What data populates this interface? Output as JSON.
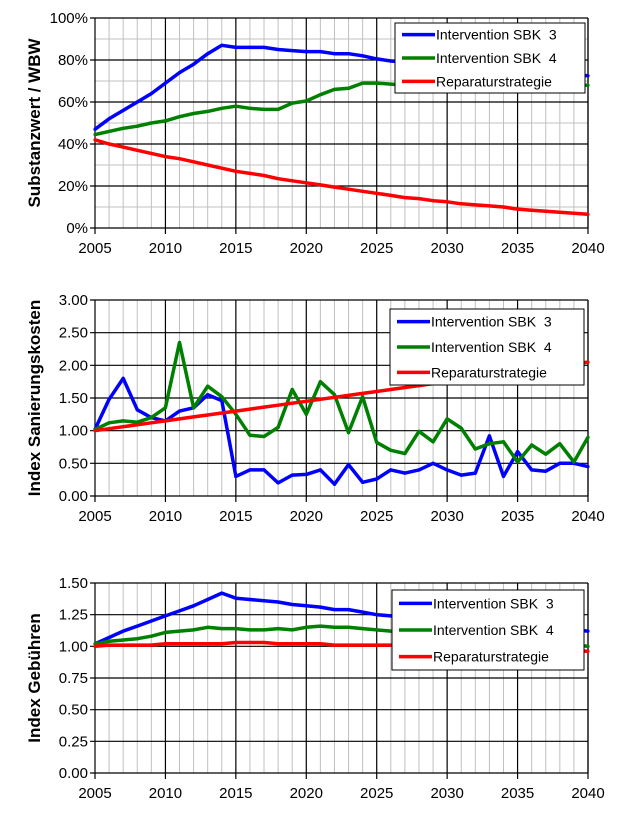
{
  "chart_data": [
    {
      "type": "line",
      "title": "",
      "xlabel": "",
      "ylabel": "Substanzwert / WBW",
      "xlim": [
        2005,
        2040
      ],
      "ylim": [
        0,
        100
      ],
      "yformat": "percent",
      "xticks": [
        "2005",
        "2010",
        "2015",
        "2020",
        "2025",
        "2030",
        "2035",
        "2040"
      ],
      "yticks": [
        "0%",
        "20%",
        "40%",
        "60%",
        "80%",
        "100%"
      ],
      "grid": true,
      "legend": "top-right",
      "x": [
        2005,
        2006,
        2007,
        2008,
        2009,
        2010,
        2011,
        2012,
        2013,
        2014,
        2015,
        2016,
        2017,
        2018,
        2019,
        2020,
        2021,
        2022,
        2023,
        2024,
        2025,
        2026,
        2027,
        2028,
        2029,
        2030,
        2031,
        2032,
        2033,
        2034,
        2035,
        2036,
        2037,
        2038,
        2039,
        2040
      ],
      "series": [
        {
          "name": "Intervention SBK  3",
          "color": "#0000ff",
          "values": [
            47,
            52,
            56,
            60,
            64,
            69,
            74,
            78,
            83,
            87,
            86,
            86,
            86,
            85,
            84.5,
            84,
            84,
            83,
            83,
            82,
            80.5,
            79.5,
            79,
            78.5,
            78,
            77.5,
            77,
            76.5,
            76,
            75.5,
            75,
            74.5,
            74,
            73.5,
            73,
            72.5
          ]
        },
        {
          "name": "Intervention SBK  4",
          "color": "#008000",
          "values": [
            44.5,
            46,
            47.5,
            48.5,
            50,
            51,
            53,
            54.5,
            55.5,
            57,
            58,
            57,
            56.5,
            56.5,
            59.5,
            60.5,
            63.5,
            66,
            66.5,
            69,
            69,
            68.5,
            68,
            68,
            68,
            68,
            68,
            68,
            68,
            68,
            68,
            68,
            68,
            68,
            68,
            68
          ]
        },
        {
          "name": "Reparaturstrategie",
          "color": "#ff0000",
          "values": [
            42,
            40,
            38.5,
            37,
            35.5,
            34,
            33,
            31.5,
            30,
            28.5,
            27,
            26,
            25,
            23.5,
            22.5,
            21.5,
            20.5,
            19.5,
            18.5,
            17.5,
            16.5,
            15.5,
            14.5,
            14,
            13,
            12.5,
            11.5,
            11,
            10.5,
            10,
            9,
            8.5,
            8,
            7.5,
            7,
            6.5
          ]
        }
      ]
    },
    {
      "type": "line",
      "title": "",
      "xlabel": "",
      "ylabel": "Index Sanierungskosten",
      "xlim": [
        2005,
        2040
      ],
      "ylim": [
        0,
        3
      ],
      "xticks": [
        "2005",
        "2010",
        "2015",
        "2020",
        "2025",
        "2030",
        "2035",
        "2040"
      ],
      "yticks": [
        "0.00",
        "0.50",
        "1.00",
        "1.50",
        "2.00",
        "2.50",
        "3.00"
      ],
      "grid": true,
      "legend": "top-right",
      "x": [
        2005,
        2006,
        2007,
        2008,
        2009,
        2010,
        2011,
        2012,
        2013,
        2014,
        2015,
        2016,
        2017,
        2018,
        2019,
        2020,
        2021,
        2022,
        2023,
        2024,
        2025,
        2026,
        2027,
        2028,
        2029,
        2030,
        2031,
        2032,
        2033,
        2034,
        2035,
        2036,
        2037,
        2038,
        2039,
        2040
      ],
      "series": [
        {
          "name": "Intervention SBK  3",
          "color": "#0000ff",
          "values": [
            1.02,
            1.48,
            1.8,
            1.32,
            1.2,
            1.15,
            1.3,
            1.35,
            1.55,
            1.46,
            0.3,
            0.4,
            0.4,
            0.2,
            0.32,
            0.33,
            0.4,
            0.18,
            0.48,
            0.21,
            0.26,
            0.4,
            0.35,
            0.4,
            0.5,
            0.4,
            0.32,
            0.35,
            0.92,
            0.3,
            0.68,
            0.4,
            0.38,
            0.5,
            0.5,
            0.45
          ]
        },
        {
          "name": "Intervention SBK  4",
          "color": "#008000",
          "values": [
            1.02,
            1.12,
            1.15,
            1.13,
            1.2,
            1.35,
            2.35,
            1.35,
            1.68,
            1.52,
            1.25,
            0.93,
            0.91,
            1.05,
            1.63,
            1.25,
            1.75,
            1.55,
            0.97,
            1.52,
            0.82,
            0.7,
            0.65,
            0.99,
            0.83,
            1.18,
            1.04,
            0.72,
            0.8,
            0.83,
            0.52,
            0.78,
            0.64,
            0.8,
            0.52,
            0.9
          ]
        },
        {
          "name": "Reparaturstrategie",
          "color": "#ff0000",
          "values": [
            1.0,
            1.03,
            1.06,
            1.09,
            1.12,
            1.15,
            1.18,
            1.21,
            1.24,
            1.27,
            1.3,
            1.33,
            1.36,
            1.39,
            1.42,
            1.45,
            1.48,
            1.51,
            1.54,
            1.57,
            1.6,
            1.63,
            1.66,
            1.69,
            1.72,
            1.75,
            1.78,
            1.81,
            1.84,
            1.87,
            1.9,
            1.93,
            1.96,
            1.99,
            2.02,
            2.05
          ]
        }
      ]
    },
    {
      "type": "line",
      "title": "",
      "xlabel": "",
      "ylabel": "Index Gebühren",
      "xlim": [
        2005,
        2040
      ],
      "ylim": [
        0,
        1.5
      ],
      "xticks": [
        "2005",
        "2010",
        "2015",
        "2020",
        "2025",
        "2030",
        "2035",
        "2040"
      ],
      "yticks": [
        "0.00",
        "0.25",
        "0.50",
        "0.75",
        "1.00",
        "1.25",
        "1.50"
      ],
      "grid": true,
      "legend": "top-right",
      "x": [
        2005,
        2006,
        2007,
        2008,
        2009,
        2010,
        2011,
        2012,
        2013,
        2014,
        2015,
        2016,
        2017,
        2018,
        2019,
        2020,
        2021,
        2022,
        2023,
        2024,
        2025,
        2026,
        2027,
        2028,
        2029,
        2030,
        2031,
        2032,
        2033,
        2034,
        2035,
        2036,
        2037,
        2038,
        2039,
        2040
      ],
      "series": [
        {
          "name": "Intervention SBK  3",
          "color": "#0000ff",
          "values": [
            1.02,
            1.07,
            1.12,
            1.16,
            1.2,
            1.24,
            1.28,
            1.32,
            1.37,
            1.42,
            1.38,
            1.37,
            1.36,
            1.35,
            1.33,
            1.32,
            1.31,
            1.29,
            1.29,
            1.27,
            1.25,
            1.24,
            1.23,
            1.22,
            1.21,
            1.2,
            1.19,
            1.18,
            1.17,
            1.17,
            1.16,
            1.15,
            1.14,
            1.14,
            1.13,
            1.12
          ]
        },
        {
          "name": "Intervention SBK  4",
          "color": "#008000",
          "values": [
            1.02,
            1.04,
            1.05,
            1.06,
            1.08,
            1.11,
            1.12,
            1.13,
            1.15,
            1.14,
            1.14,
            1.13,
            1.13,
            1.14,
            1.13,
            1.15,
            1.16,
            1.15,
            1.15,
            1.14,
            1.13,
            1.12,
            1.11,
            1.1,
            1.09,
            1.08,
            1.07,
            1.06,
            1.05,
            1.05,
            1.04,
            1.03,
            1.03,
            1.02,
            1.01,
            1.0
          ]
        },
        {
          "name": "Reparaturstrategie",
          "color": "#ff0000",
          "values": [
            1.0,
            1.01,
            1.01,
            1.01,
            1.01,
            1.02,
            1.02,
            1.02,
            1.02,
            1.02,
            1.03,
            1.03,
            1.03,
            1.02,
            1.02,
            1.02,
            1.02,
            1.01,
            1.01,
            1.01,
            1.01,
            1.01,
            1.01,
            1.01,
            1.0,
            1.0,
            1.0,
            1.0,
            0.99,
            0.99,
            0.99,
            0.98,
            0.98,
            0.97,
            0.97,
            0.96
          ]
        }
      ]
    }
  ]
}
